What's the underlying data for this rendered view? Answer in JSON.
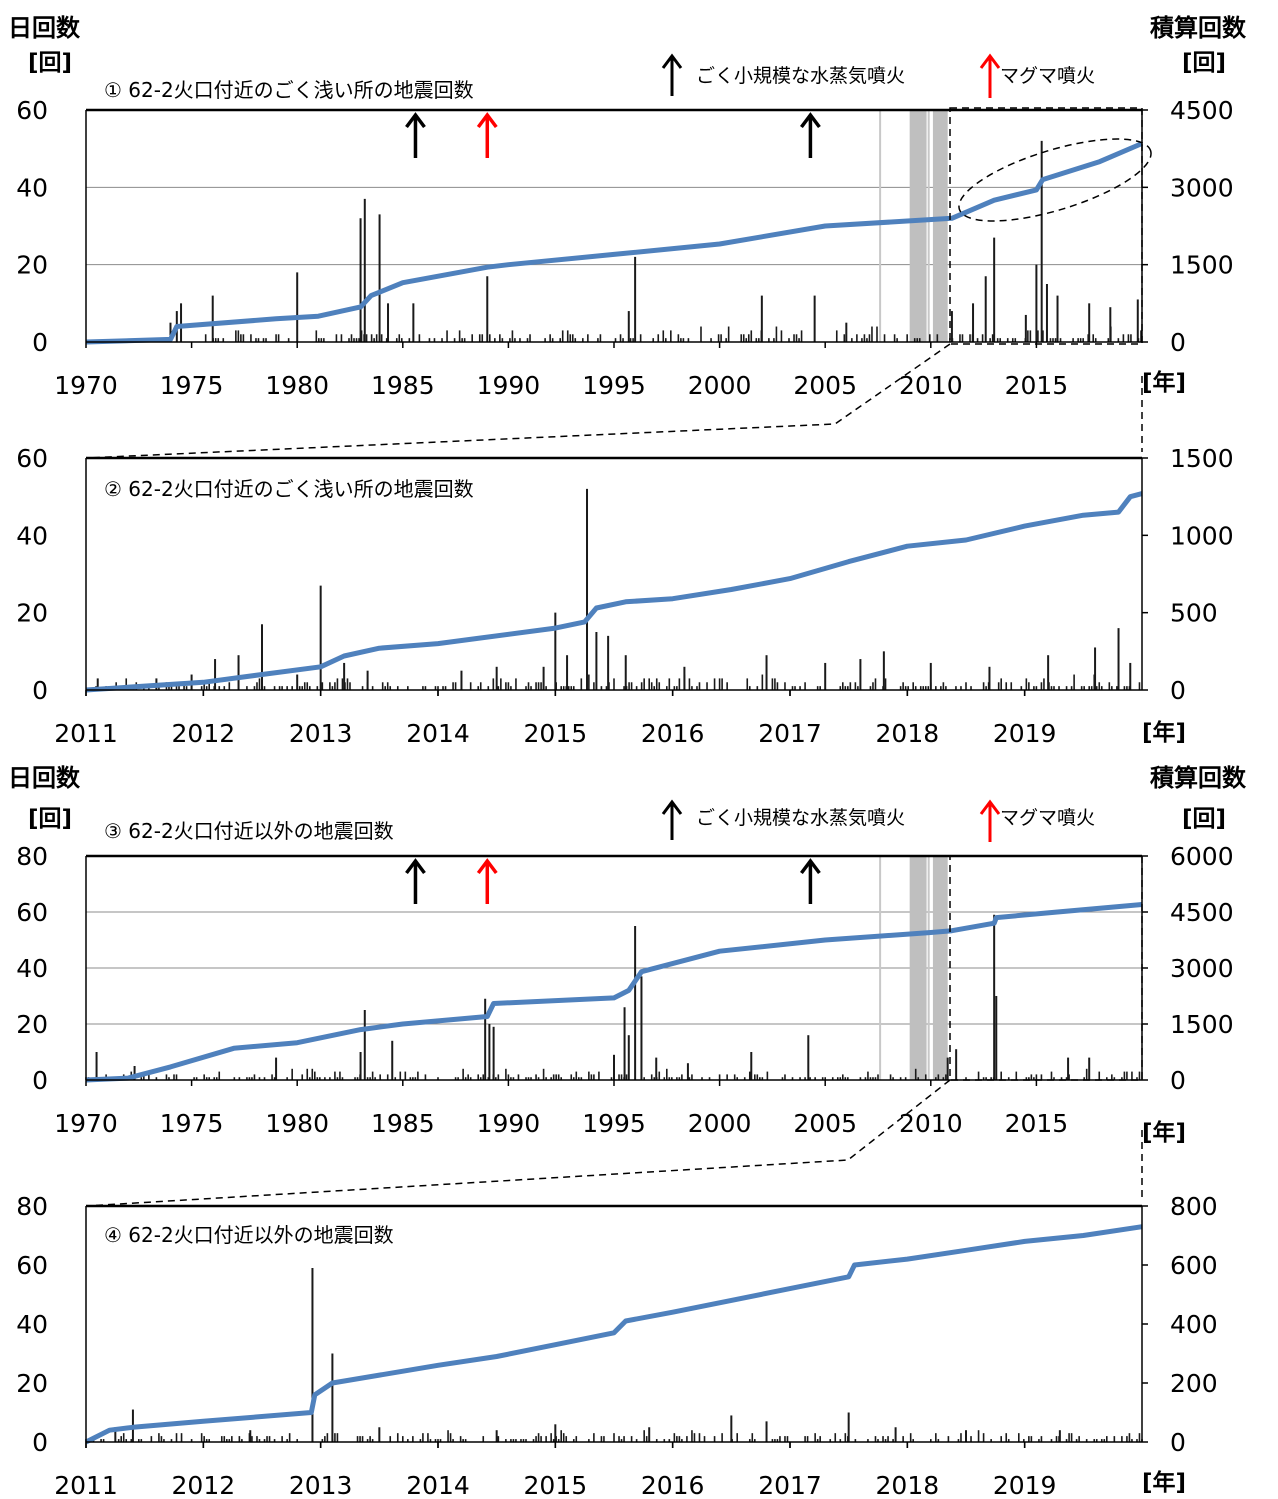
{
  "header": {
    "left_title": "日回数",
    "left_unit": "[回]",
    "right_title": "積算回数",
    "right_unit": "[回]",
    "year_unit": "[年]"
  },
  "legend": {
    "small_eruption": "ごく小規模な水蒸気噴火",
    "magma_eruption": "マグマ噴火",
    "small_color": "#000000",
    "magma_color": "#ff0000"
  },
  "colors": {
    "bar": "#1a1a1a",
    "cumulative": "#4f81bd",
    "gap": "#bfbfbf"
  },
  "chart_data": [
    {
      "type": "bar",
      "title": "① 62-2火口付近のごく浅い所の地震回数",
      "x_range": [
        1970,
        2020
      ],
      "x_ticks": [
        "1970",
        "1975",
        "1980",
        "1985",
        "1990",
        "1995",
        "2000",
        "2005",
        "2010",
        "2015"
      ],
      "y_left_range": [
        0,
        60
      ],
      "y_left_ticks": [
        "0",
        "20",
        "40",
        "60"
      ],
      "y_right_range": [
        0,
        4500
      ],
      "y_right_ticks": [
        "0",
        "1500",
        "3000",
        "4500"
      ],
      "grid": true,
      "daily_counts": [
        [
          1974.0,
          5
        ],
        [
          1974.3,
          8
        ],
        [
          1974.5,
          10
        ],
        [
          1976.0,
          12
        ],
        [
          1980.0,
          18
        ],
        [
          1983.0,
          32
        ],
        [
          1983.2,
          37
        ],
        [
          1983.9,
          33
        ],
        [
          1984.3,
          10
        ],
        [
          1985.5,
          10
        ],
        [
          1989.0,
          17
        ],
        [
          1996.0,
          22
        ],
        [
          1995.7,
          8
        ],
        [
          2002.0,
          12
        ],
        [
          2004.5,
          12
        ],
        [
          2006.0,
          5
        ],
        [
          2011.0,
          8
        ],
        [
          2012.0,
          10
        ],
        [
          2013.0,
          27
        ],
        [
          2012.6,
          17
        ],
        [
          2014.5,
          7
        ],
        [
          2015.0,
          20
        ],
        [
          2015.25,
          52
        ],
        [
          2015.5,
          15
        ],
        [
          2016.0,
          12
        ],
        [
          2017.5,
          10
        ],
        [
          2018.5,
          9
        ],
        [
          2019.8,
          11
        ]
      ],
      "cumulative": [
        [
          1970,
          0
        ],
        [
          1974,
          50
        ],
        [
          1974.3,
          300
        ],
        [
          1979,
          450
        ],
        [
          1981,
          500
        ],
        [
          1983,
          680
        ],
        [
          1983.5,
          900
        ],
        [
          1985,
          1150
        ],
        [
          1989,
          1450
        ],
        [
          1990,
          1500
        ],
        [
          1995,
          1700
        ],
        [
          2000,
          1900
        ],
        [
          2005,
          2250
        ],
        [
          2011,
          2400
        ],
        [
          2013,
          2750
        ],
        [
          2015,
          2950
        ],
        [
          2015.3,
          3150
        ],
        [
          2018,
          3500
        ],
        [
          2020,
          3850
        ]
      ],
      "eruptions_small": [
        1985.6,
        2004.3
      ],
      "eruptions_magma": [
        1989.0
      ],
      "gap_periods": [
        [
          2009.0,
          2009.8
        ],
        [
          2010.1,
          2010.8
        ]
      ],
      "gap_lines": [
        2007.6,
        2009.9
      ]
    },
    {
      "type": "bar",
      "title": "② 62-2火口付近のごく浅い所の地震回数",
      "x_range": [
        2011,
        2020
      ],
      "x_ticks": [
        "2011",
        "2012",
        "2013",
        "2014",
        "2015",
        "2016",
        "2017",
        "2018",
        "2019"
      ],
      "y_left_range": [
        0,
        60
      ],
      "y_left_ticks": [
        "0",
        "20",
        "40",
        "60"
      ],
      "y_right_range": [
        0,
        1500
      ],
      "y_right_ticks": [
        "0",
        "500",
        "1000",
        "1500"
      ],
      "grid": false,
      "daily_counts": [
        [
          2011.1,
          3
        ],
        [
          2011.6,
          3
        ],
        [
          2011.9,
          4
        ],
        [
          2012.1,
          8
        ],
        [
          2012.3,
          9
        ],
        [
          2012.5,
          17
        ],
        [
          2012.8,
          4
        ],
        [
          2013.0,
          27
        ],
        [
          2013.2,
          7
        ],
        [
          2013.4,
          5
        ],
        [
          2014.2,
          5
        ],
        [
          2014.5,
          6
        ],
        [
          2014.9,
          6
        ],
        [
          2015.0,
          20
        ],
        [
          2015.1,
          9
        ],
        [
          2015.27,
          52
        ],
        [
          2015.35,
          15
        ],
        [
          2015.45,
          14
        ],
        [
          2015.6,
          9
        ],
        [
          2016.1,
          6
        ],
        [
          2016.8,
          9
        ],
        [
          2017.3,
          7
        ],
        [
          2017.6,
          8
        ],
        [
          2017.8,
          10
        ],
        [
          2018.2,
          7
        ],
        [
          2018.7,
          6
        ],
        [
          2019.2,
          9
        ],
        [
          2019.6,
          11
        ],
        [
          2019.8,
          16
        ],
        [
          2019.9,
          7
        ]
      ],
      "cumulative": [
        [
          2011,
          0
        ],
        [
          2012,
          50
        ],
        [
          2012.5,
          100
        ],
        [
          2013,
          150
        ],
        [
          2013.2,
          220
        ],
        [
          2013.5,
          270
        ],
        [
          2014.0,
          300
        ],
        [
          2015.0,
          400
        ],
        [
          2015.25,
          440
        ],
        [
          2015.35,
          530
        ],
        [
          2015.6,
          570
        ],
        [
          2016.0,
          590
        ],
        [
          2016.5,
          650
        ],
        [
          2017.0,
          720
        ],
        [
          2017.5,
          830
        ],
        [
          2018.0,
          930
        ],
        [
          2018.5,
          970
        ],
        [
          2019.0,
          1060
        ],
        [
          2019.5,
          1130
        ],
        [
          2019.8,
          1150
        ],
        [
          2019.9,
          1250
        ],
        [
          2020,
          1270
        ]
      ],
      "eruptions_small": [],
      "eruptions_magma": [],
      "gap_periods": [],
      "gap_lines": []
    },
    {
      "type": "bar",
      "title": "③ 62-2火口付近以外の地震回数",
      "x_range": [
        1970,
        2020
      ],
      "x_ticks": [
        "1970",
        "1975",
        "1980",
        "1985",
        "1990",
        "1995",
        "2000",
        "2005",
        "2010",
        "2015"
      ],
      "y_left_range": [
        0,
        80
      ],
      "y_left_ticks": [
        "0",
        "20",
        "40",
        "60",
        "80"
      ],
      "y_right_range": [
        0,
        6000
      ],
      "y_right_ticks": [
        "0",
        "1500",
        "3000",
        "4500",
        "6000"
      ],
      "grid": true,
      "daily_counts": [
        [
          1970.5,
          10
        ],
        [
          1972.3,
          5
        ],
        [
          1979.0,
          8
        ],
        [
          1983.0,
          10
        ],
        [
          1983.2,
          25
        ],
        [
          1984.5,
          14
        ],
        [
          1988.9,
          29
        ],
        [
          1989.1,
          20
        ],
        [
          1989.3,
          19
        ],
        [
          1995.0,
          9
        ],
        [
          1995.5,
          26
        ],
        [
          1995.7,
          16
        ],
        [
          1996.0,
          55
        ],
        [
          1996.3,
          37
        ],
        [
          1997.0,
          8
        ],
        [
          1998.5,
          6
        ],
        [
          2001.5,
          10
        ],
        [
          2004.2,
          16
        ],
        [
          2010.8,
          8
        ],
        [
          2011.2,
          11
        ],
        [
          2013.0,
          59
        ],
        [
          2013.1,
          30
        ],
        [
          2016.5,
          8
        ],
        [
          2017.5,
          8
        ]
      ],
      "cumulative": [
        [
          1970,
          0
        ],
        [
          1972,
          50
        ],
        [
          1974,
          350
        ],
        [
          1977,
          850
        ],
        [
          1980,
          1000
        ],
        [
          1983,
          1350
        ],
        [
          1985,
          1500
        ],
        [
          1989,
          1700
        ],
        [
          1989.3,
          2050
        ],
        [
          1995,
          2200
        ],
        [
          1995.7,
          2400
        ],
        [
          1996.3,
          2900
        ],
        [
          2000,
          3450
        ],
        [
          2005,
          3750
        ],
        [
          2010,
          3950
        ],
        [
          2011,
          4000
        ],
        [
          2013,
          4200
        ],
        [
          2013.1,
          4350
        ],
        [
          2016,
          4500
        ],
        [
          2018,
          4600
        ],
        [
          2020,
          4700
        ]
      ],
      "eruptions_small": [
        1985.6,
        2004.3
      ],
      "eruptions_magma": [
        1989.0
      ],
      "gap_periods": [
        [
          2009.0,
          2009.8
        ],
        [
          2010.1,
          2010.8
        ]
      ],
      "gap_lines": [
        2007.6,
        2009.9
      ]
    },
    {
      "type": "bar",
      "title": "④ 62-2火口付近以外の地震回数",
      "x_range": [
        2011,
        2020
      ],
      "x_ticks": [
        "2011",
        "2012",
        "2013",
        "2014",
        "2015",
        "2016",
        "2017",
        "2018",
        "2019"
      ],
      "y_left_range": [
        0,
        80
      ],
      "y_left_ticks": [
        "0",
        "20",
        "40",
        "60",
        "80"
      ],
      "y_right_range": [
        0,
        800
      ],
      "y_right_ticks": [
        "0",
        "200",
        "400",
        "600",
        "800"
      ],
      "grid": false,
      "daily_counts": [
        [
          2011.4,
          11
        ],
        [
          2011.25,
          5
        ],
        [
          2012.4,
          4
        ],
        [
          2012.93,
          59
        ],
        [
          2013.1,
          30
        ],
        [
          2013.5,
          5
        ],
        [
          2014.5,
          4
        ],
        [
          2015.0,
          6
        ],
        [
          2015.8,
          5
        ],
        [
          2016.5,
          9
        ],
        [
          2016.8,
          7
        ],
        [
          2017.5,
          10
        ],
        [
          2017.9,
          5
        ],
        [
          2018.5,
          4
        ],
        [
          2019.3,
          4
        ]
      ],
      "cumulative": [
        [
          2011,
          0
        ],
        [
          2011.2,
          40
        ],
        [
          2011.4,
          50
        ],
        [
          2012,
          70
        ],
        [
          2012.92,
          100
        ],
        [
          2012.95,
          160
        ],
        [
          2013.1,
          200
        ],
        [
          2014.0,
          260
        ],
        [
          2014.5,
          290
        ],
        [
          2015.0,
          330
        ],
        [
          2015.5,
          370
        ],
        [
          2015.6,
          410
        ],
        [
          2016.0,
          440
        ],
        [
          2016.5,
          480
        ],
        [
          2017.0,
          520
        ],
        [
          2017.5,
          560
        ],
        [
          2017.55,
          600
        ],
        [
          2018.0,
          620
        ],
        [
          2018.5,
          650
        ],
        [
          2019.0,
          680
        ],
        [
          2019.5,
          700
        ],
        [
          2020,
          730
        ]
      ],
      "eruptions_small": [],
      "eruptions_magma": [],
      "gap_periods": [],
      "gap_lines": []
    }
  ]
}
